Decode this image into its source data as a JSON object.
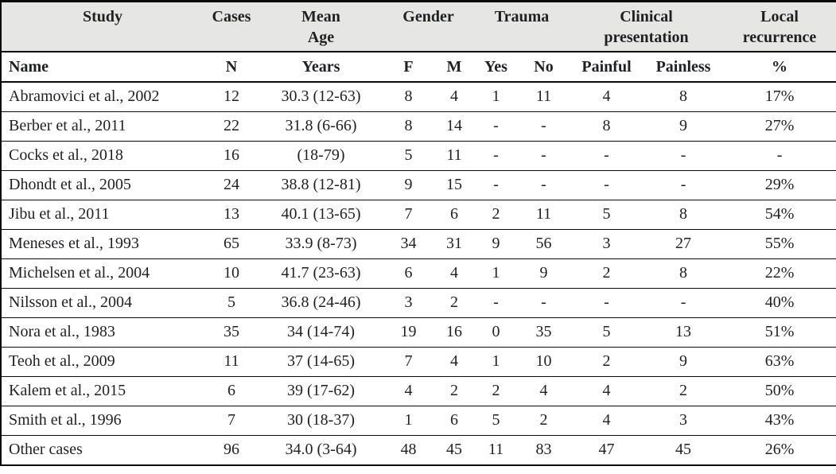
{
  "colors": {
    "page_bg": "#ffffff",
    "header_bg": "#e6e6e4",
    "text": "#1f2023",
    "border": "#0a0a0a"
  },
  "table": {
    "group_headers": [
      "Study",
      "Cases",
      "Mean Age",
      "Gender",
      "Trauma",
      "Clinical presentation",
      "Local recurrence"
    ],
    "subheaders": [
      "Name",
      "N",
      "Years",
      "F",
      "M",
      "Yes",
      "No",
      "Painful",
      "Painless",
      "%"
    ],
    "rows": [
      [
        "Abramovici et al., 2002",
        "12",
        "30.3 (12-63)",
        "8",
        "4",
        "1",
        "11",
        "4",
        "8",
        "17%"
      ],
      [
        "Berber et al., 2011",
        "22",
        "31.8 (6-66)",
        "8",
        "14",
        "-",
        "-",
        "8",
        "9",
        "27%"
      ],
      [
        "Cocks et al., 2018",
        "16",
        "(18-79)",
        "5",
        "11",
        "-",
        "-",
        "-",
        "-",
        "-"
      ],
      [
        "Dhondt et al., 2005",
        "24",
        "38.8 (12-81)",
        "9",
        "15",
        "-",
        "-",
        "-",
        "-",
        "29%"
      ],
      [
        "Jibu et al., 2011",
        "13",
        "40.1 (13-65)",
        "7",
        "6",
        "2",
        "11",
        "5",
        "8",
        "54%"
      ],
      [
        "Meneses et al., 1993",
        "65",
        "33.9 (8-73)",
        "34",
        "31",
        "9",
        "56",
        "3",
        "27",
        "55%"
      ],
      [
        "Michelsen et al., 2004",
        "10",
        "41.7 (23-63)",
        "6",
        "4",
        "1",
        "9",
        "2",
        "8",
        "22%"
      ],
      [
        "Nilsson et al., 2004",
        "5",
        "36.8 (24-46)",
        "3",
        "2",
        "-",
        "-",
        "-",
        "-",
        "40%"
      ],
      [
        "Nora et al., 1983",
        "35",
        "34 (14-74)",
        "19",
        "16",
        "0",
        "35",
        "5",
        "13",
        "51%"
      ],
      [
        "Teoh et al., 2009",
        "11",
        "37 (14-65)",
        "7",
        "4",
        "1",
        "10",
        "2",
        "9",
        "63%"
      ],
      [
        "Kalem et al., 2015",
        "6",
        "39 (17-62)",
        "4",
        "2",
        "2",
        "4",
        "4",
        "2",
        "50%"
      ],
      [
        "Smith et al., 1996",
        "7",
        "30 (18-37)",
        "1",
        "6",
        "5",
        "2",
        "4",
        "3",
        "43%"
      ],
      [
        "Other cases",
        "96",
        "34.0 (3-64)",
        "48",
        "45",
        "11",
        "83",
        "47",
        "45",
        "26%"
      ]
    ]
  }
}
